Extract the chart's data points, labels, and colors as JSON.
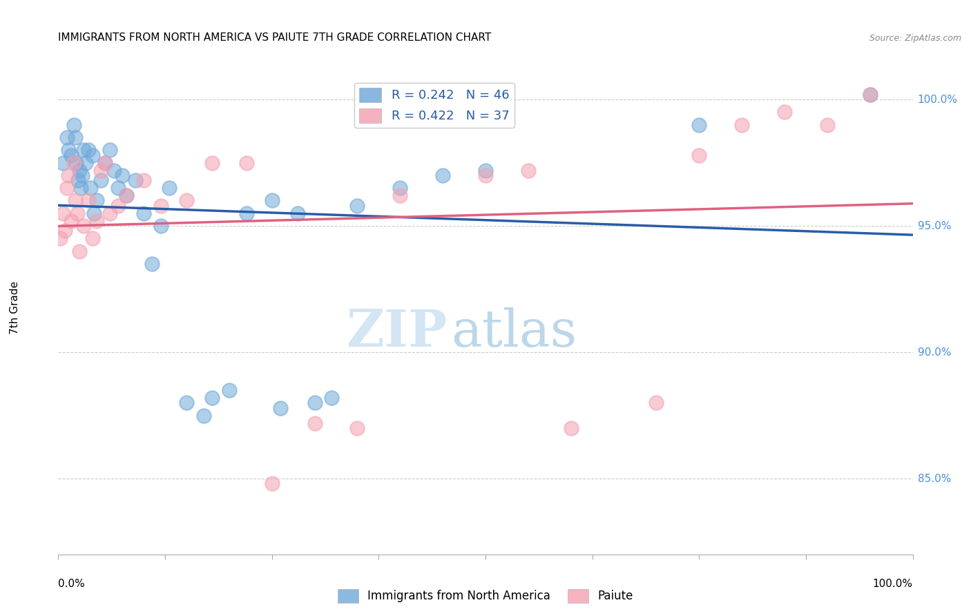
{
  "title": "IMMIGRANTS FROM NORTH AMERICA VS PAIUTE 7TH GRADE CORRELATION CHART",
  "source": "Source: ZipAtlas.com",
  "ylabel": "7th Grade",
  "xlim": [
    0.0,
    100.0
  ],
  "ylim": [
    82.0,
    101.5
  ],
  "yticks": [
    85.0,
    90.0,
    95.0,
    100.0
  ],
  "blue_color": "#6fa8d8",
  "pink_color": "#f4a0b0",
  "blue_line_color": "#2a5ca8",
  "pink_line_color": "#e06080",
  "legend_blue_label": "R = 0.242   N = 46",
  "legend_pink_label": "R = 0.422   N = 37",
  "legend_bottom_blue": "Immigrants from North America",
  "legend_bottom_pink": "Paiute",
  "watermark_zip": "ZIP",
  "watermark_atlas": "atlas",
  "blue_x": [
    0.5,
    1.0,
    1.2,
    1.5,
    1.8,
    2.0,
    2.1,
    2.3,
    2.5,
    2.6,
    2.8,
    3.0,
    3.2,
    3.5,
    3.8,
    4.0,
    4.2,
    4.5,
    5.0,
    5.5,
    6.0,
    6.5,
    7.0,
    7.5,
    8.0,
    9.0,
    10.0,
    11.0,
    12.0,
    13.0,
    15.0,
    17.0,
    18.0,
    20.0,
    22.0,
    25.0,
    26.0,
    28.0,
    30.0,
    32.0,
    35.0,
    40.0,
    45.0,
    50.0,
    75.0,
    95.0
  ],
  "blue_y": [
    97.5,
    98.5,
    98.0,
    97.8,
    99.0,
    98.5,
    97.5,
    96.8,
    97.2,
    96.5,
    97.0,
    98.0,
    97.5,
    98.0,
    96.5,
    97.8,
    95.5,
    96.0,
    96.8,
    97.5,
    98.0,
    97.2,
    96.5,
    97.0,
    96.2,
    96.8,
    95.5,
    93.5,
    95.0,
    96.5,
    88.0,
    87.5,
    88.2,
    88.5,
    95.5,
    96.0,
    87.8,
    95.5,
    88.0,
    88.2,
    95.8,
    96.5,
    97.0,
    97.2,
    99.0,
    100.2
  ],
  "pink_x": [
    0.2,
    0.5,
    0.8,
    1.0,
    1.2,
    1.5,
    1.8,
    2.0,
    2.2,
    2.5,
    3.0,
    3.5,
    4.0,
    4.5,
    5.0,
    5.5,
    6.0,
    7.0,
    8.0,
    10.0,
    12.0,
    15.0,
    18.0,
    22.0,
    25.0,
    30.0,
    35.0,
    40.0,
    50.0,
    55.0,
    60.0,
    70.0,
    75.0,
    80.0,
    85.0,
    90.0,
    95.0
  ],
  "pink_y": [
    94.5,
    95.5,
    94.8,
    96.5,
    97.0,
    95.2,
    97.5,
    96.0,
    95.5,
    94.0,
    95.0,
    96.0,
    94.5,
    95.2,
    97.2,
    97.5,
    95.5,
    95.8,
    96.2,
    96.8,
    95.8,
    96.0,
    97.5,
    97.5,
    84.8,
    87.2,
    87.0,
    96.2,
    97.0,
    97.2,
    87.0,
    88.0,
    97.8,
    99.0,
    99.5,
    99.0,
    100.2
  ]
}
